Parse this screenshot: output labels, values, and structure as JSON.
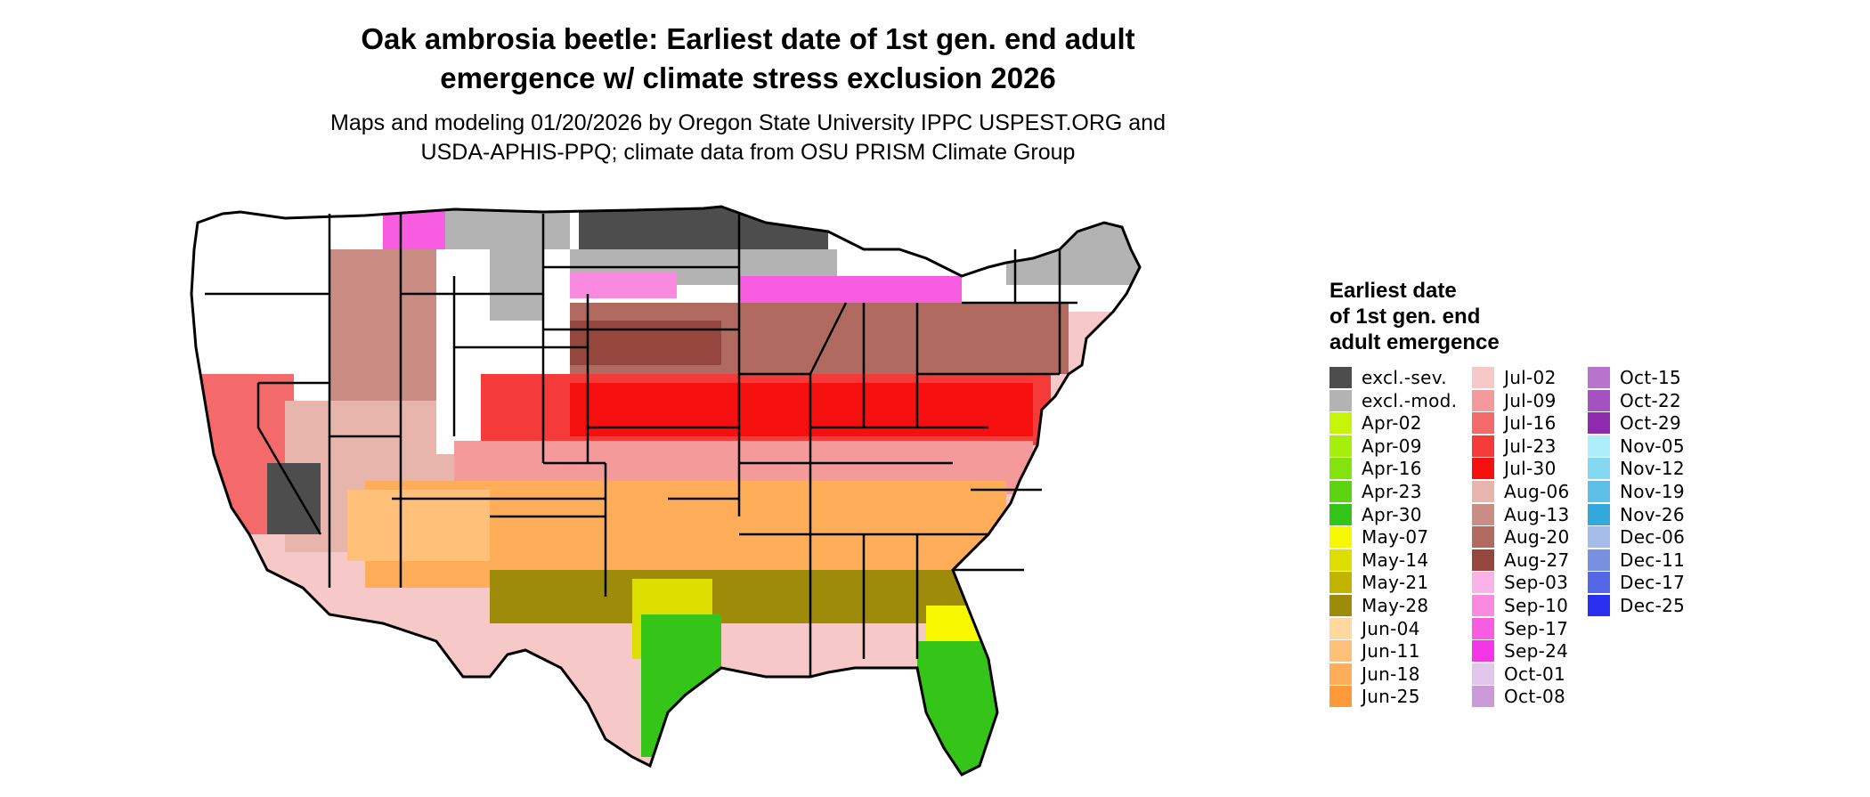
{
  "title_line1": "Oak ambrosia beetle: Earliest date of 1st gen. end adult",
  "title_line2": "emergence w/ climate stress exclusion 2026",
  "subtitle_line1": "Maps and modeling 01/20/2026 by Oregon State University IPPC USPEST.ORG and",
  "subtitle_line2": "USDA-APHIS-PPQ; climate data from OSU PRISM Climate Group",
  "legend": {
    "title_line1": "Earliest date",
    "title_line2": "of 1st gen. end",
    "title_line3": "adult emergence",
    "columns": [
      [
        {
          "label": "excl.-sev.",
          "color": "#4d4d4d"
        },
        {
          "label": "excl.-mod.",
          "color": "#b3b3b3"
        },
        {
          "label": "Apr-02",
          "color": "#c6f50a"
        },
        {
          "label": "Apr-09",
          "color": "#a6ee0c"
        },
        {
          "label": "Apr-16",
          "color": "#84e20e"
        },
        {
          "label": "Apr-23",
          "color": "#5dd412"
        },
        {
          "label": "Apr-30",
          "color": "#35c518"
        },
        {
          "label": "May-07",
          "color": "#f7f700"
        },
        {
          "label": "May-14",
          "color": "#dede00"
        },
        {
          "label": "May-21",
          "color": "#c3b400"
        },
        {
          "label": "May-28",
          "color": "#9e8b0a"
        },
        {
          "label": "Jun-04",
          "color": "#ffd8a0"
        },
        {
          "label": "Jun-11",
          "color": "#ffc07a"
        },
        {
          "label": "Jun-18",
          "color": "#ffad58"
        },
        {
          "label": "Jun-25",
          "color": "#ff9a3a"
        }
      ],
      [
        {
          "label": "Jul-02",
          "color": "#f7c8c8"
        },
        {
          "label": "Jul-09",
          "color": "#f59a9a"
        },
        {
          "label": "Jul-16",
          "color": "#f46a6a"
        },
        {
          "label": "Jul-23",
          "color": "#f53a3a"
        },
        {
          "label": "Jul-30",
          "color": "#f50f0f"
        },
        {
          "label": "Aug-06",
          "color": "#e8b5ad"
        },
        {
          "label": "Aug-13",
          "color": "#c98d84"
        },
        {
          "label": "Aug-20",
          "color": "#b06a60"
        },
        {
          "label": "Aug-27",
          "color": "#96473d"
        },
        {
          "label": "Sep-03",
          "color": "#fab3e6"
        },
        {
          "label": "Sep-10",
          "color": "#f98ae0"
        },
        {
          "label": "Sep-17",
          "color": "#f85ce0"
        },
        {
          "label": "Sep-24",
          "color": "#f535e8"
        },
        {
          "label": "Oct-01",
          "color": "#e2c6ec"
        },
        {
          "label": "Oct-08",
          "color": "#cc9ad8"
        }
      ],
      [
        {
          "label": "Oct-15",
          "color": "#b874cc"
        },
        {
          "label": "Oct-22",
          "color": "#a452c0"
        },
        {
          "label": "Oct-29",
          "color": "#8f2aaf"
        },
        {
          "label": "Nov-05",
          "color": "#aeeefb"
        },
        {
          "label": "Nov-12",
          "color": "#85d8f2"
        },
        {
          "label": "Nov-19",
          "color": "#5ec0e8"
        },
        {
          "label": "Nov-26",
          "color": "#33a8dd"
        },
        {
          "label": "Dec-06",
          "color": "#a3bce8"
        },
        {
          "label": "Dec-11",
          "color": "#7890e0"
        },
        {
          "label": "Dec-17",
          "color": "#5468e5"
        },
        {
          "label": "Dec-25",
          "color": "#2a30f0"
        }
      ]
    ]
  },
  "map_colors": {
    "excluded_severe": "#4d4d4d",
    "excluded_moderate": "#b3b3b3",
    "no_data": "#ffffff",
    "border": "#000000"
  }
}
